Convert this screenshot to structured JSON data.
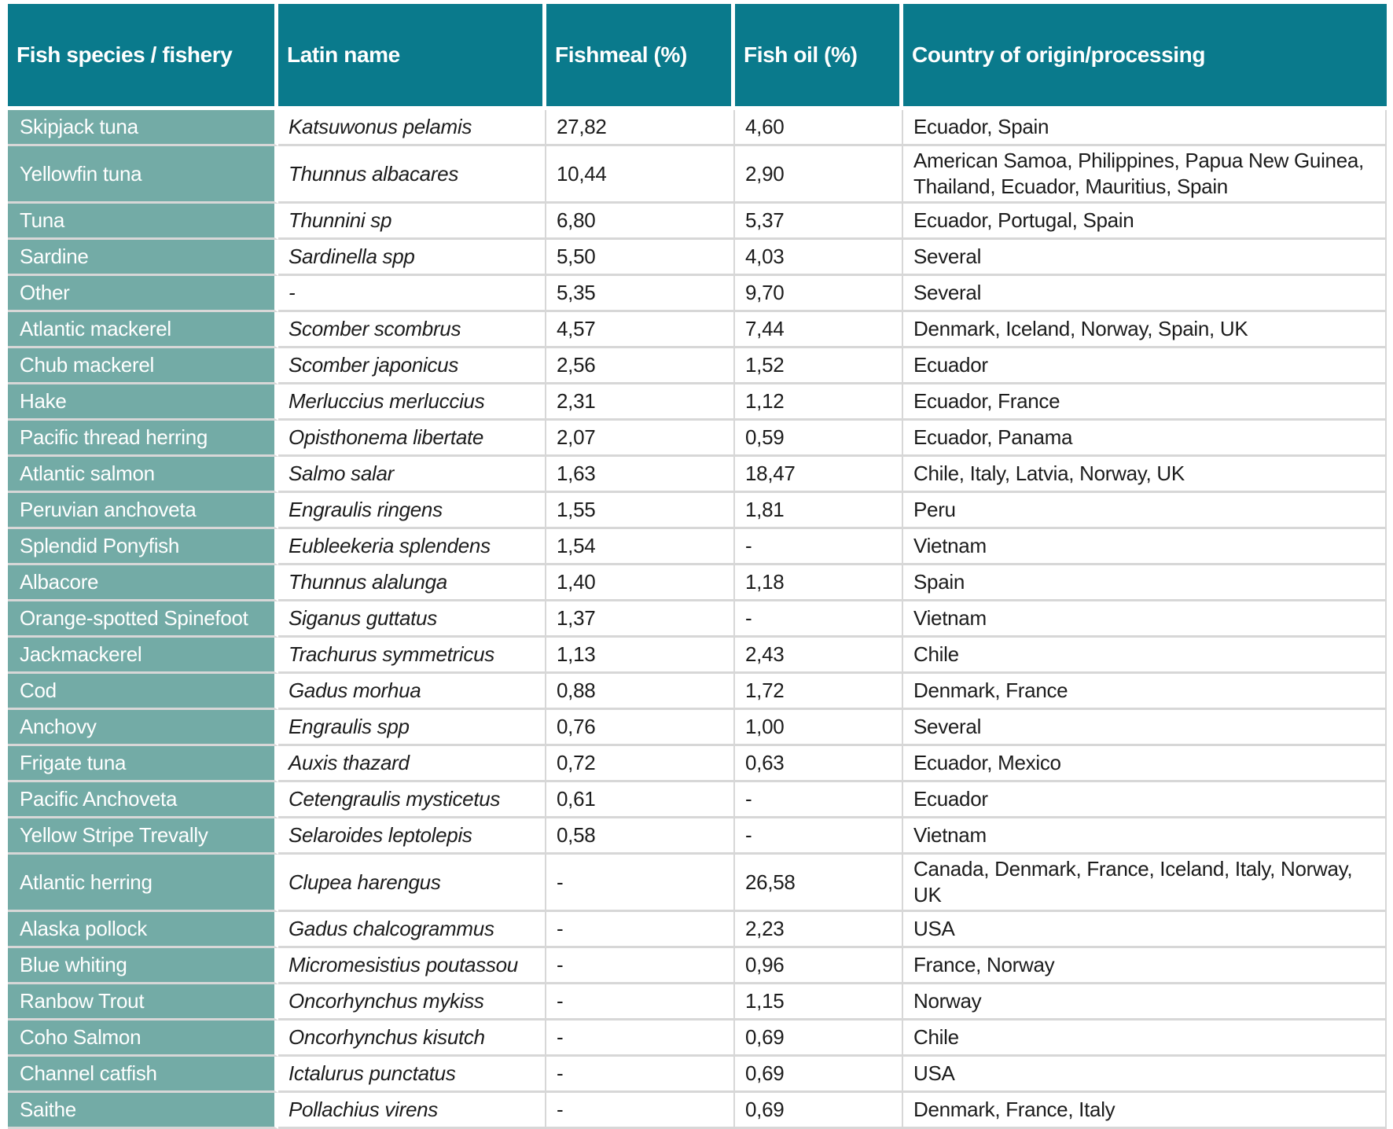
{
  "colors": {
    "header_bg": "#0a7a8c",
    "species_bg": "#73aba6",
    "header_text": "#ffffff",
    "body_text": "#1c1c1c",
    "separator": "#d7d7d7",
    "page_bg": "#ffffff"
  },
  "table": {
    "columns": [
      {
        "id": "species",
        "label": "Fish species / fishery"
      },
      {
        "id": "latin",
        "label": "Latin name"
      },
      {
        "id": "fishmeal",
        "label": "Fishmeal (%)"
      },
      {
        "id": "fishoil",
        "label": "Fish oil (%)"
      },
      {
        "id": "country",
        "label": "Country of origin/processing"
      }
    ],
    "rows": [
      {
        "species": "Skipjack tuna",
        "latin": "Katsuwonus pelamis",
        "fishmeal": "27,82",
        "fishoil": "4,60",
        "country": "Ecuador, Spain"
      },
      {
        "species": "Yellowfin tuna",
        "latin": "Thunnus albacares",
        "fishmeal": "10,44",
        "fishoil": "2,90",
        "country": "American Samoa, Philippines, Papua New Guinea, Thailand, Ecuador, Mauritius, Spain"
      },
      {
        "species": "Tuna",
        "latin": "Thunnini sp",
        "fishmeal": "6,80",
        "fishoil": "5,37",
        "country": "Ecuador, Portugal, Spain"
      },
      {
        "species": "Sardine",
        "latin": "Sardinella spp",
        "fishmeal": "5,50",
        "fishoil": "4,03",
        "country": "Several"
      },
      {
        "species": "Other",
        "latin": "-",
        "fishmeal": "5,35",
        "fishoil": "9,70",
        "country": "Several"
      },
      {
        "species": "Atlantic mackerel",
        "latin": "Scomber scombrus",
        "fishmeal": "4,57",
        "fishoil": "7,44",
        "country": "Denmark, Iceland, Norway, Spain, UK"
      },
      {
        "species": "Chub mackerel",
        "latin": "Scomber japonicus",
        "fishmeal": "2,56",
        "fishoil": "1,52",
        "country": "Ecuador"
      },
      {
        "species": "Hake",
        "latin": "Merluccius merluccius",
        "fishmeal": "2,31",
        "fishoil": "1,12",
        "country": "Ecuador, France"
      },
      {
        "species": "Pacific thread herring",
        "latin": "Opisthonema libertate",
        "fishmeal": "2,07",
        "fishoil": "0,59",
        "country": "Ecuador, Panama"
      },
      {
        "species": "Atlantic salmon",
        "latin": "Salmo salar",
        "fishmeal": "1,63",
        "fishoil": "18,47",
        "country": "Chile, Italy, Latvia, Norway, UK"
      },
      {
        "species": "Peruvian anchoveta",
        "latin": "Engraulis ringens",
        "fishmeal": "1,55",
        "fishoil": "1,81",
        "country": "Peru"
      },
      {
        "species": "Splendid Ponyfish",
        "latin": "Eubleekeria splendens",
        "fishmeal": "1,54",
        "fishoil": "-",
        "country": "Vietnam"
      },
      {
        "species": "Albacore",
        "latin": "Thunnus alalunga",
        "fishmeal": "1,40",
        "fishoil": "1,18",
        "country": "Spain"
      },
      {
        "species": "Orange-spotted Spinefoot",
        "latin": "Siganus guttatus",
        "fishmeal": "1,37",
        "fishoil": "-",
        "country": "Vietnam"
      },
      {
        "species": "Jackmackerel",
        "latin": "Trachurus symmetricus",
        "fishmeal": "1,13",
        "fishoil": "2,43",
        "country": "Chile"
      },
      {
        "species": "Cod",
        "latin": "Gadus morhua",
        "fishmeal": "0,88",
        "fishoil": "1,72",
        "country": "Denmark, France"
      },
      {
        "species": "Anchovy",
        "latin": "Engraulis spp",
        "fishmeal": "0,76",
        "fishoil": "1,00",
        "country": "Several"
      },
      {
        "species": "Frigate tuna",
        "latin": "Auxis thazard",
        "fishmeal": "0,72",
        "fishoil": "0,63",
        "country": "Ecuador, Mexico"
      },
      {
        "species": "Pacific Anchoveta",
        "latin": "Cetengraulis mysticetus",
        "fishmeal": "0,61",
        "fishoil": "-",
        "country": "Ecuador"
      },
      {
        "species": "Yellow Stripe Trevally",
        "latin": "Selaroides leptolepis",
        "fishmeal": "0,58",
        "fishoil": "-",
        "country": "Vietnam"
      },
      {
        "species": "Atlantic herring",
        "latin": "Clupea harengus",
        "fishmeal": "-",
        "fishoil": "26,58",
        "country": "Canada, Denmark, France, Iceland, Italy, Norway, UK"
      },
      {
        "species": "Alaska pollock",
        "latin": "Gadus chalcogrammus",
        "fishmeal": "-",
        "fishoil": "2,23",
        "country": "USA"
      },
      {
        "species": "Blue whiting",
        "latin": "Micromesistius poutassou",
        "fishmeal": "-",
        "fishoil": "0,96",
        "country": "France, Norway"
      },
      {
        "species": "Ranbow Trout",
        "latin": "Oncorhynchus mykiss",
        "fishmeal": "-",
        "fishoil": "1,15",
        "country": "Norway"
      },
      {
        "species": "Coho Salmon",
        "latin": "Oncorhynchus kisutch",
        "fishmeal": "-",
        "fishoil": "0,69",
        "country": "Chile"
      },
      {
        "species": "Channel catfish",
        "latin": "Ictalurus punctatus",
        "fishmeal": "-",
        "fishoil": "0,69",
        "country": "USA"
      },
      {
        "species": "Saithe",
        "latin": "Pollachius virens",
        "fishmeal": "-",
        "fishoil": "0,69",
        "country": "Denmark, France, Italy"
      }
    ]
  },
  "chart_data": {
    "type": "table",
    "columns": [
      "Fish species / fishery",
      "Latin name",
      "Fishmeal (%)",
      "Fish oil (%)",
      "Country of origin/processing"
    ],
    "rows": [
      [
        "Skipjack tuna",
        "Katsuwonus pelamis",
        "27,82",
        "4,60",
        "Ecuador, Spain"
      ],
      [
        "Yellowfin tuna",
        "Thunnus albacares",
        "10,44",
        "2,90",
        "American Samoa, Philippines, Papua New Guinea, Thailand, Ecuador, Mauritius, Spain"
      ],
      [
        "Tuna",
        "Thunnini sp",
        "6,80",
        "5,37",
        "Ecuador, Portugal, Spain"
      ],
      [
        "Sardine",
        "Sardinella spp",
        "5,50",
        "4,03",
        "Several"
      ],
      [
        "Other",
        "-",
        "5,35",
        "9,70",
        "Several"
      ],
      [
        "Atlantic mackerel",
        "Scomber scombrus",
        "4,57",
        "7,44",
        "Denmark, Iceland, Norway, Spain, UK"
      ],
      [
        "Chub mackerel",
        "Scomber japonicus",
        "2,56",
        "1,52",
        "Ecuador"
      ],
      [
        "Hake",
        "Merluccius merluccius",
        "2,31",
        "1,12",
        "Ecuador, France"
      ],
      [
        "Pacific thread herring",
        "Opisthonema libertate",
        "2,07",
        "0,59",
        "Ecuador, Panama"
      ],
      [
        "Atlantic salmon",
        "Salmo salar",
        "1,63",
        "18,47",
        "Chile, Italy, Latvia, Norway, UK"
      ],
      [
        "Peruvian anchoveta",
        "Engraulis ringens",
        "1,55",
        "1,81",
        "Peru"
      ],
      [
        "Splendid Ponyfish",
        "Eubleekeria splendens",
        "1,54",
        "-",
        "Vietnam"
      ],
      [
        "Albacore",
        "Thunnus alalunga",
        "1,40",
        "1,18",
        "Spain"
      ],
      [
        "Orange-spotted Spinefoot",
        "Siganus guttatus",
        "1,37",
        "-",
        "Vietnam"
      ],
      [
        "Jackmackerel",
        "Trachurus symmetricus",
        "1,13",
        "2,43",
        "Chile"
      ],
      [
        "Cod",
        "Gadus morhua",
        "0,88",
        "1,72",
        "Denmark, France"
      ],
      [
        "Anchovy",
        "Engraulis spp",
        "0,76",
        "1,00",
        "Several"
      ],
      [
        "Frigate tuna",
        "Auxis thazard",
        "0,72",
        "0,63",
        "Ecuador, Mexico"
      ],
      [
        "Pacific Anchoveta",
        "Cetengraulis mysticetus",
        "0,61",
        "-",
        "Ecuador"
      ],
      [
        "Yellow Stripe Trevally",
        "Selaroides leptolepis",
        "0,58",
        "-",
        "Vietnam"
      ],
      [
        "Atlantic herring",
        "Clupea harengus",
        "-",
        "26,58",
        "Canada, Denmark, France, Iceland, Italy, Norway, UK"
      ],
      [
        "Alaska pollock",
        "Gadus chalcogrammus",
        "-",
        "2,23",
        "USA"
      ],
      [
        "Blue whiting",
        "Micromesistius poutassou",
        "-",
        "0,96",
        "France, Norway"
      ],
      [
        "Ranbow Trout",
        "Oncorhynchus mykiss",
        "-",
        "1,15",
        "Norway"
      ],
      [
        "Coho Salmon",
        "Oncorhynchus kisutch",
        "-",
        "0,69",
        "Chile"
      ],
      [
        "Channel catfish",
        "Ictalurus punctatus",
        "-",
        "0,69",
        "USA"
      ],
      [
        "Saithe",
        "Pollachius virens",
        "-",
        "0,69",
        "Denmark, France, Italy"
      ]
    ]
  }
}
